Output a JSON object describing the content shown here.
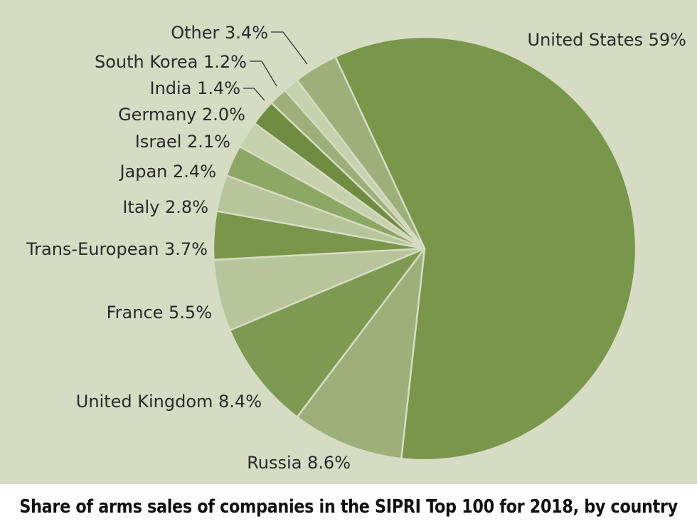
{
  "chart_data": {
    "type": "pie",
    "title": "Share of arms sales of companies in the SIPRI Top 100 for 2018, by country",
    "slices": [
      {
        "label": "United States",
        "value": 59,
        "text": "United States 59%",
        "color": "#79964a"
      },
      {
        "label": "Russia",
        "value": 8.6,
        "text": "Russia 8.6%",
        "color": "#9db07a"
      },
      {
        "label": "United Kingdom",
        "value": 8.4,
        "text": "United Kingdom 8.4%",
        "color": "#7e9a52"
      },
      {
        "label": "France",
        "value": 5.5,
        "text": "France 5.5%",
        "color": "#b7c59b"
      },
      {
        "label": "Trans-European",
        "value": 3.7,
        "text": "Trans-European 3.7%",
        "color": "#79964a"
      },
      {
        "label": "Italy",
        "value": 2.8,
        "text": "Italy 2.8%",
        "color": "#b7c59b"
      },
      {
        "label": "Japan",
        "value": 2.4,
        "text": "Japan 2.4%",
        "color": "#8da765"
      },
      {
        "label": "Israel",
        "value": 2.1,
        "text": "Israel 2.1%",
        "color": "#c6d1ad"
      },
      {
        "label": "Germany",
        "value": 2.0,
        "text": "Germany 2.0%",
        "color": "#6f8c40"
      },
      {
        "label": "India",
        "value": 1.4,
        "text": "India 1.4%",
        "color": "#9db07a"
      },
      {
        "label": "South Korea",
        "value": 1.2,
        "text": "South Korea 1.2%",
        "color": "#c6d1ad"
      },
      {
        "label": "Other",
        "value": 3.4,
        "text": "Other 3.4%",
        "color": "#9db07a"
      }
    ],
    "background": "#d6dcc4",
    "slice_border": "#d6dcc4"
  }
}
